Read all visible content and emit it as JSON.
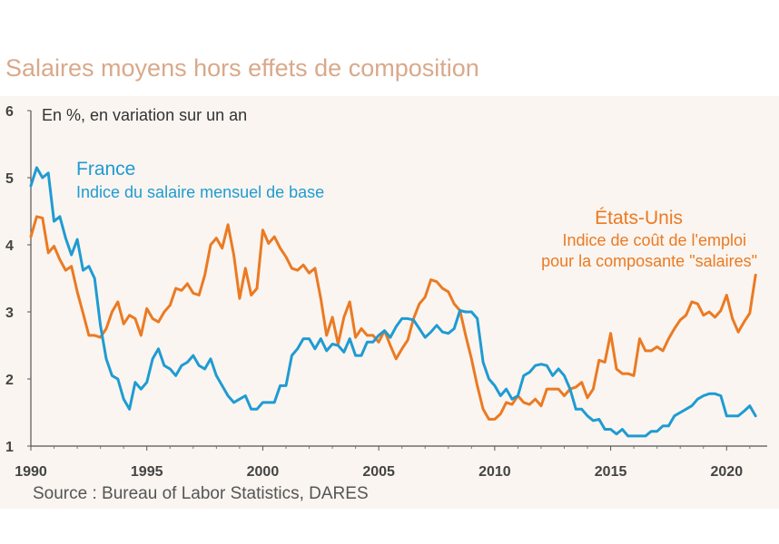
{
  "title": "Salaires moyens hors effets de composition",
  "source": "Source : Bureau of Labor Statistics, DARES",
  "colors": {
    "france": "#1f9bd3",
    "us": "#eb7a23",
    "panel": "#faf5f0",
    "text": "#333333"
  },
  "chart_data": {
    "type": "line",
    "subtitle": "En %, en variation sur un an",
    "xlim": [
      1990,
      2021.75
    ],
    "ylim": [
      1,
      6
    ],
    "x_ticks": [
      "1990",
      "1995",
      "2000",
      "2005",
      "2010",
      "2015",
      "2020"
    ],
    "y_ticks": [
      "1",
      "2",
      "3",
      "4",
      "5",
      "6"
    ],
    "series": [
      {
        "name": "France",
        "description": "Indice du salaire mensuel de base",
        "color": "#1f9bd3",
        "points": [
          [
            1990.0,
            4.88
          ],
          [
            1990.25,
            5.15
          ],
          [
            1990.5,
            5.0
          ],
          [
            1990.75,
            5.07
          ],
          [
            1991.0,
            4.35
          ],
          [
            1991.25,
            4.42
          ],
          [
            1991.5,
            4.1
          ],
          [
            1991.75,
            3.85
          ],
          [
            1992.0,
            4.08
          ],
          [
            1992.25,
            3.62
          ],
          [
            1992.5,
            3.68
          ],
          [
            1992.75,
            3.5
          ],
          [
            1993.0,
            2.8
          ],
          [
            1993.25,
            2.3
          ],
          [
            1993.5,
            2.05
          ],
          [
            1993.75,
            2.0
          ],
          [
            1994.0,
            1.7
          ],
          [
            1994.25,
            1.55
          ],
          [
            1994.5,
            1.95
          ],
          [
            1994.75,
            1.85
          ],
          [
            1995.0,
            1.95
          ],
          [
            1995.25,
            2.3
          ],
          [
            1995.5,
            2.45
          ],
          [
            1995.75,
            2.2
          ],
          [
            1996.0,
            2.15
          ],
          [
            1996.25,
            2.05
          ],
          [
            1996.5,
            2.2
          ],
          [
            1996.75,
            2.25
          ],
          [
            1997.0,
            2.35
          ],
          [
            1997.25,
            2.2
          ],
          [
            1997.5,
            2.15
          ],
          [
            1997.75,
            2.3
          ],
          [
            1998.0,
            2.05
          ],
          [
            1998.25,
            1.9
          ],
          [
            1998.5,
            1.75
          ],
          [
            1998.75,
            1.65
          ],
          [
            1999.0,
            1.7
          ],
          [
            1999.25,
            1.75
          ],
          [
            1999.5,
            1.55
          ],
          [
            1999.75,
            1.55
          ],
          [
            2000.0,
            1.65
          ],
          [
            2000.25,
            1.65
          ],
          [
            2000.5,
            1.65
          ],
          [
            2000.75,
            1.9
          ],
          [
            2001.0,
            1.9
          ],
          [
            2001.25,
            2.35
          ],
          [
            2001.5,
            2.45
          ],
          [
            2001.75,
            2.6
          ],
          [
            2002.0,
            2.6
          ],
          [
            2002.25,
            2.45
          ],
          [
            2002.5,
            2.6
          ],
          [
            2002.75,
            2.42
          ],
          [
            2003.0,
            2.52
          ],
          [
            2003.25,
            2.5
          ],
          [
            2003.5,
            2.4
          ],
          [
            2003.75,
            2.6
          ],
          [
            2004.0,
            2.35
          ],
          [
            2004.25,
            2.35
          ],
          [
            2004.5,
            2.55
          ],
          [
            2004.75,
            2.55
          ],
          [
            2005.0,
            2.65
          ],
          [
            2005.25,
            2.72
          ],
          [
            2005.5,
            2.62
          ],
          [
            2005.75,
            2.78
          ],
          [
            2006.0,
            2.9
          ],
          [
            2006.25,
            2.9
          ],
          [
            2006.5,
            2.88
          ],
          [
            2006.75,
            2.75
          ],
          [
            2007.0,
            2.62
          ],
          [
            2007.25,
            2.7
          ],
          [
            2007.5,
            2.8
          ],
          [
            2007.75,
            2.7
          ],
          [
            2008.0,
            2.68
          ],
          [
            2008.25,
            2.75
          ],
          [
            2008.5,
            3.02
          ],
          [
            2008.75,
            3.0
          ],
          [
            2009.0,
            3.0
          ],
          [
            2009.25,
            2.9
          ],
          [
            2009.5,
            2.25
          ],
          [
            2009.75,
            2.0
          ],
          [
            2010.0,
            1.9
          ],
          [
            2010.25,
            1.75
          ],
          [
            2010.5,
            1.85
          ],
          [
            2010.75,
            1.7
          ],
          [
            2011.0,
            1.75
          ],
          [
            2011.25,
            2.05
          ],
          [
            2011.5,
            2.1
          ],
          [
            2011.75,
            2.2
          ],
          [
            2012.0,
            2.22
          ],
          [
            2012.25,
            2.2
          ],
          [
            2012.5,
            2.05
          ],
          [
            2012.75,
            2.15
          ],
          [
            2013.0,
            2.05
          ],
          [
            2013.25,
            1.85
          ],
          [
            2013.5,
            1.55
          ],
          [
            2013.75,
            1.55
          ],
          [
            2014.0,
            1.45
          ],
          [
            2014.25,
            1.38
          ],
          [
            2014.5,
            1.4
          ],
          [
            2014.75,
            1.25
          ],
          [
            2015.0,
            1.25
          ],
          [
            2015.25,
            1.18
          ],
          [
            2015.5,
            1.25
          ],
          [
            2015.75,
            1.15
          ],
          [
            2016.0,
            1.15
          ],
          [
            2016.25,
            1.15
          ],
          [
            2016.5,
            1.15
          ],
          [
            2016.75,
            1.22
          ],
          [
            2017.0,
            1.22
          ],
          [
            2017.25,
            1.3
          ],
          [
            2017.5,
            1.3
          ],
          [
            2017.75,
            1.45
          ],
          [
            2018.0,
            1.5
          ],
          [
            2018.25,
            1.55
          ],
          [
            2018.5,
            1.6
          ],
          [
            2018.75,
            1.7
          ],
          [
            2019.0,
            1.75
          ],
          [
            2019.25,
            1.78
          ],
          [
            2019.5,
            1.78
          ],
          [
            2019.75,
            1.75
          ],
          [
            2020.0,
            1.45
          ],
          [
            2020.25,
            1.45
          ],
          [
            2020.5,
            1.45
          ],
          [
            2020.75,
            1.52
          ],
          [
            2021.0,
            1.6
          ],
          [
            2021.25,
            1.45
          ]
        ]
      },
      {
        "name": "États-Unis",
        "description_line1": "Indice de coût de l'emploi",
        "description_line2": "pour la composante \"salaires\"",
        "color": "#eb7a23",
        "points": [
          [
            1990.0,
            4.12
          ],
          [
            1990.25,
            4.42
          ],
          [
            1990.5,
            4.4
          ],
          [
            1990.75,
            3.88
          ],
          [
            1991.0,
            3.98
          ],
          [
            1991.25,
            3.78
          ],
          [
            1991.5,
            3.62
          ],
          [
            1991.75,
            3.68
          ],
          [
            1992.0,
            3.3
          ],
          [
            1992.25,
            2.98
          ],
          [
            1992.5,
            2.65
          ],
          [
            1992.75,
            2.65
          ],
          [
            1993.0,
            2.62
          ],
          [
            1993.25,
            2.75
          ],
          [
            1993.5,
            3.0
          ],
          [
            1993.75,
            3.15
          ],
          [
            1994.0,
            2.82
          ],
          [
            1994.25,
            2.95
          ],
          [
            1994.5,
            2.9
          ],
          [
            1994.75,
            2.65
          ],
          [
            1995.0,
            3.05
          ],
          [
            1995.25,
            2.9
          ],
          [
            1995.5,
            2.85
          ],
          [
            1995.75,
            3.0
          ],
          [
            1996.0,
            3.1
          ],
          [
            1996.25,
            3.35
          ],
          [
            1996.5,
            3.32
          ],
          [
            1996.75,
            3.42
          ],
          [
            1997.0,
            3.28
          ],
          [
            1997.25,
            3.25
          ],
          [
            1997.5,
            3.55
          ],
          [
            1997.75,
            4.0
          ],
          [
            1998.0,
            4.1
          ],
          [
            1998.25,
            3.95
          ],
          [
            1998.5,
            4.3
          ],
          [
            1998.75,
            3.85
          ],
          [
            1999.0,
            3.2
          ],
          [
            1999.25,
            3.65
          ],
          [
            1999.5,
            3.25
          ],
          [
            1999.75,
            3.35
          ],
          [
            2000.0,
            4.22
          ],
          [
            2000.25,
            4.02
          ],
          [
            2000.5,
            4.12
          ],
          [
            2000.75,
            3.95
          ],
          [
            2001.0,
            3.82
          ],
          [
            2001.25,
            3.65
          ],
          [
            2001.5,
            3.62
          ],
          [
            2001.75,
            3.7
          ],
          [
            2002.0,
            3.58
          ],
          [
            2002.25,
            3.65
          ],
          [
            2002.5,
            3.2
          ],
          [
            2002.75,
            2.65
          ],
          [
            2003.0,
            2.92
          ],
          [
            2003.25,
            2.52
          ],
          [
            2003.5,
            2.92
          ],
          [
            2003.75,
            3.15
          ],
          [
            2004.0,
            2.62
          ],
          [
            2004.25,
            2.75
          ],
          [
            2004.5,
            2.65
          ],
          [
            2004.75,
            2.65
          ],
          [
            2005.0,
            2.55
          ],
          [
            2005.25,
            2.72
          ],
          [
            2005.5,
            2.5
          ],
          [
            2005.75,
            2.3
          ],
          [
            2006.0,
            2.45
          ],
          [
            2006.25,
            2.58
          ],
          [
            2006.5,
            2.9
          ],
          [
            2006.75,
            3.12
          ],
          [
            2007.0,
            3.22
          ],
          [
            2007.25,
            3.48
          ],
          [
            2007.5,
            3.45
          ],
          [
            2007.75,
            3.35
          ],
          [
            2008.0,
            3.3
          ],
          [
            2008.25,
            3.12
          ],
          [
            2008.5,
            3.02
          ],
          [
            2008.75,
            2.65
          ],
          [
            2009.0,
            2.3
          ],
          [
            2009.25,
            1.9
          ],
          [
            2009.5,
            1.55
          ],
          [
            2009.75,
            1.4
          ],
          [
            2010.0,
            1.4
          ],
          [
            2010.25,
            1.48
          ],
          [
            2010.5,
            1.65
          ],
          [
            2010.75,
            1.62
          ],
          [
            2011.0,
            1.75
          ],
          [
            2011.25,
            1.65
          ],
          [
            2011.5,
            1.62
          ],
          [
            2011.75,
            1.7
          ],
          [
            2012.0,
            1.6
          ],
          [
            2012.25,
            1.85
          ],
          [
            2012.5,
            1.85
          ],
          [
            2012.75,
            1.85
          ],
          [
            2013.0,
            1.75
          ],
          [
            2013.25,
            1.85
          ],
          [
            2013.5,
            1.88
          ],
          [
            2013.75,
            1.95
          ],
          [
            2014.0,
            1.72
          ],
          [
            2014.25,
            1.85
          ],
          [
            2014.5,
            2.28
          ],
          [
            2014.75,
            2.25
          ],
          [
            2015.0,
            2.68
          ],
          [
            2015.25,
            2.15
          ],
          [
            2015.5,
            2.08
          ],
          [
            2015.75,
            2.08
          ],
          [
            2016.0,
            2.05
          ],
          [
            2016.25,
            2.6
          ],
          [
            2016.5,
            2.42
          ],
          [
            2016.75,
            2.42
          ],
          [
            2017.0,
            2.48
          ],
          [
            2017.25,
            2.42
          ],
          [
            2017.5,
            2.6
          ],
          [
            2017.75,
            2.75
          ],
          [
            2018.0,
            2.88
          ],
          [
            2018.25,
            2.95
          ],
          [
            2018.5,
            3.15
          ],
          [
            2018.75,
            3.12
          ],
          [
            2019.0,
            2.95
          ],
          [
            2019.25,
            3.0
          ],
          [
            2019.5,
            2.92
          ],
          [
            2019.75,
            3.02
          ],
          [
            2020.0,
            3.25
          ],
          [
            2020.25,
            2.9
          ],
          [
            2020.5,
            2.7
          ],
          [
            2020.75,
            2.85
          ],
          [
            2021.0,
            2.98
          ],
          [
            2021.25,
            3.55
          ]
        ]
      }
    ]
  }
}
